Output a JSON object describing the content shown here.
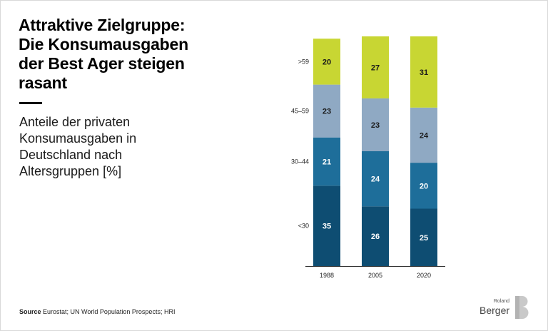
{
  "title": "Attraktive Zielgruppe:\nDie Konsumausgaben\nder Best Ager steigen\nrasant",
  "subtitle": "Anteile der privaten\nKonsumausgaben in\nDeutschland nach\nAltersgruppen [%]",
  "source": {
    "label": "Source",
    "text": "Eurostat; UN World Population Prospects; HRI"
  },
  "logo": {
    "line1": "Roland",
    "line2": "Berger"
  },
  "chart_data": {
    "type": "bar",
    "stacked": true,
    "categories": [
      "1988",
      "2005",
      "2020"
    ],
    "series": [
      {
        "name": "<30",
        "values": [
          35,
          26,
          25
        ],
        "color": "#0e4d72",
        "label_color": "#ffffff"
      },
      {
        "name": "30–44",
        "values": [
          21,
          24,
          20
        ],
        "color": "#1e6e9a",
        "label_color": "#ffffff"
      },
      {
        "name": "45–59",
        "values": [
          23,
          23,
          24
        ],
        "color": "#8fa9c3",
        "label_color": "#1a1a1a"
      },
      {
        "name": ">59",
        "values": [
          20,
          27,
          31
        ],
        "color": "#c8d633",
        "label_color": "#1a1a1a"
      }
    ],
    "legend": "left-of-first-bar",
    "ylim": [
      0,
      100
    ],
    "grid": false
  }
}
